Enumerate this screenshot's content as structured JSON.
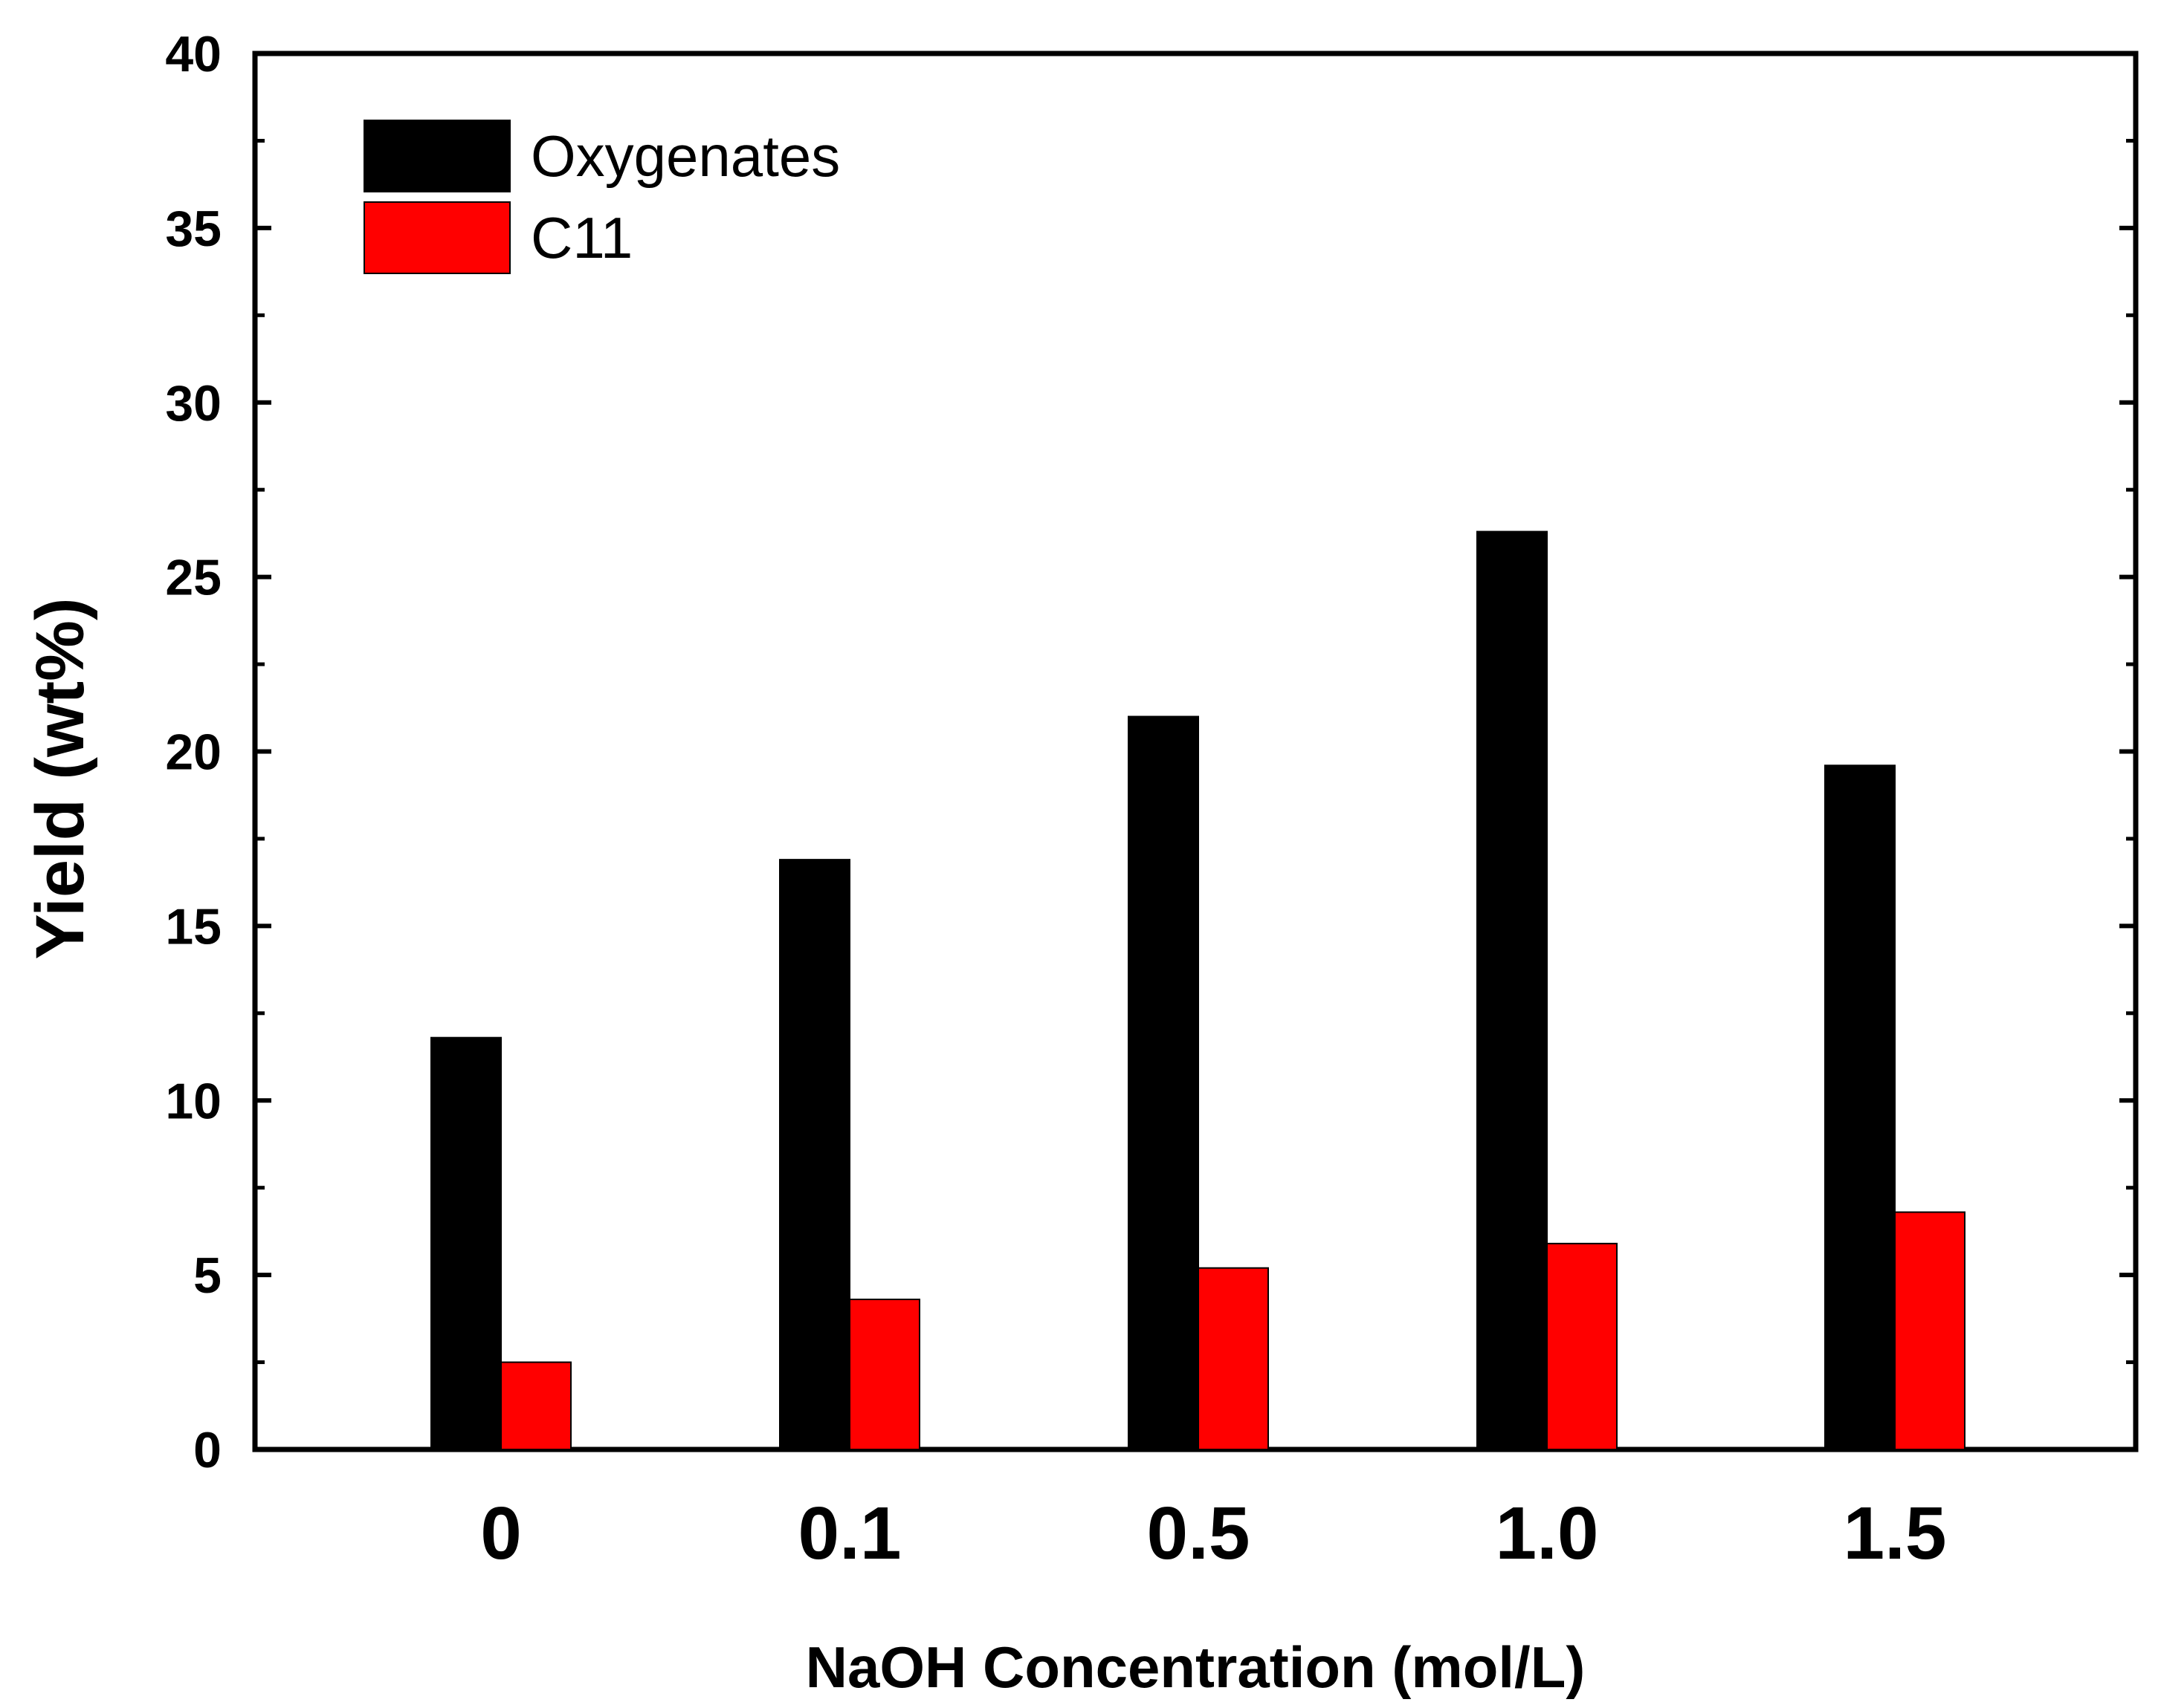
{
  "chart_data": {
    "type": "bar",
    "title": "",
    "xlabel": "NaOH Concentration (mol/L)",
    "ylabel": "Yield (wt%)",
    "categories": [
      "0",
      "0.1",
      "0.5",
      "1.0",
      "1.5"
    ],
    "ylim": [
      0,
      40
    ],
    "yticks": [
      0,
      5,
      10,
      15,
      20,
      25,
      30,
      35,
      40
    ],
    "yticks_minor": [
      2.5,
      7.5,
      12.5,
      17.5,
      22.5,
      27.5,
      32.5,
      37.5
    ],
    "ytick_labels": [
      "0",
      "5",
      "10",
      "15",
      "20",
      "25",
      "30",
      "35",
      "40"
    ],
    "grid": false,
    "legend_position": "top-left",
    "series": [
      {
        "name": "Oxygenates",
        "color": "#000000",
        "values": [
          11.8,
          16.9,
          21.0,
          26.3,
          19.6
        ]
      },
      {
        "name": "C11",
        "color": "#ff0000",
        "values": [
          2.5,
          4.3,
          5.2,
          5.9,
          6.8
        ]
      }
    ]
  }
}
